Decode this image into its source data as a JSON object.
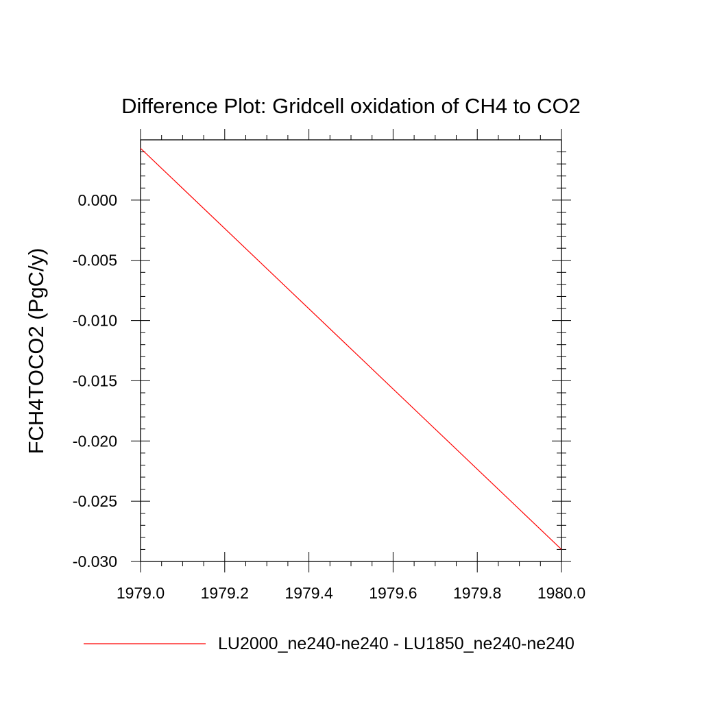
{
  "chart_data": {
    "type": "line",
    "title": "Difference Plot: Gridcell oxidation of CH4 to CO2",
    "xlabel": "",
    "ylabel": "FCH4TOCO2  (PgC/y)",
    "xlim": [
      1979.0,
      1980.0
    ],
    "ylim": [
      -0.03,
      0.005
    ],
    "x_ticks": [
      1979.0,
      1979.2,
      1979.4,
      1979.6,
      1979.8,
      1980.0
    ],
    "x_tick_labels": [
      "1979.0",
      "1979.2",
      "1979.4",
      "1979.6",
      "1979.8",
      "1980.0"
    ],
    "y_ticks": [
      0.0,
      -0.005,
      -0.01,
      -0.015,
      -0.02,
      -0.025,
      -0.03
    ],
    "y_tick_labels": [
      "0.000",
      "-0.005",
      "-0.010",
      "-0.015",
      "-0.020",
      "-0.025",
      "-0.030"
    ],
    "grid": false,
    "legend_position": "bottom",
    "series": [
      {
        "name": "LU2000_ne240-ne240 - LU1850_ne240-ne240",
        "color": "#ff0000",
        "x": [
          1979.0,
          1980.0
        ],
        "y": [
          0.0043,
          -0.029
        ]
      }
    ]
  }
}
